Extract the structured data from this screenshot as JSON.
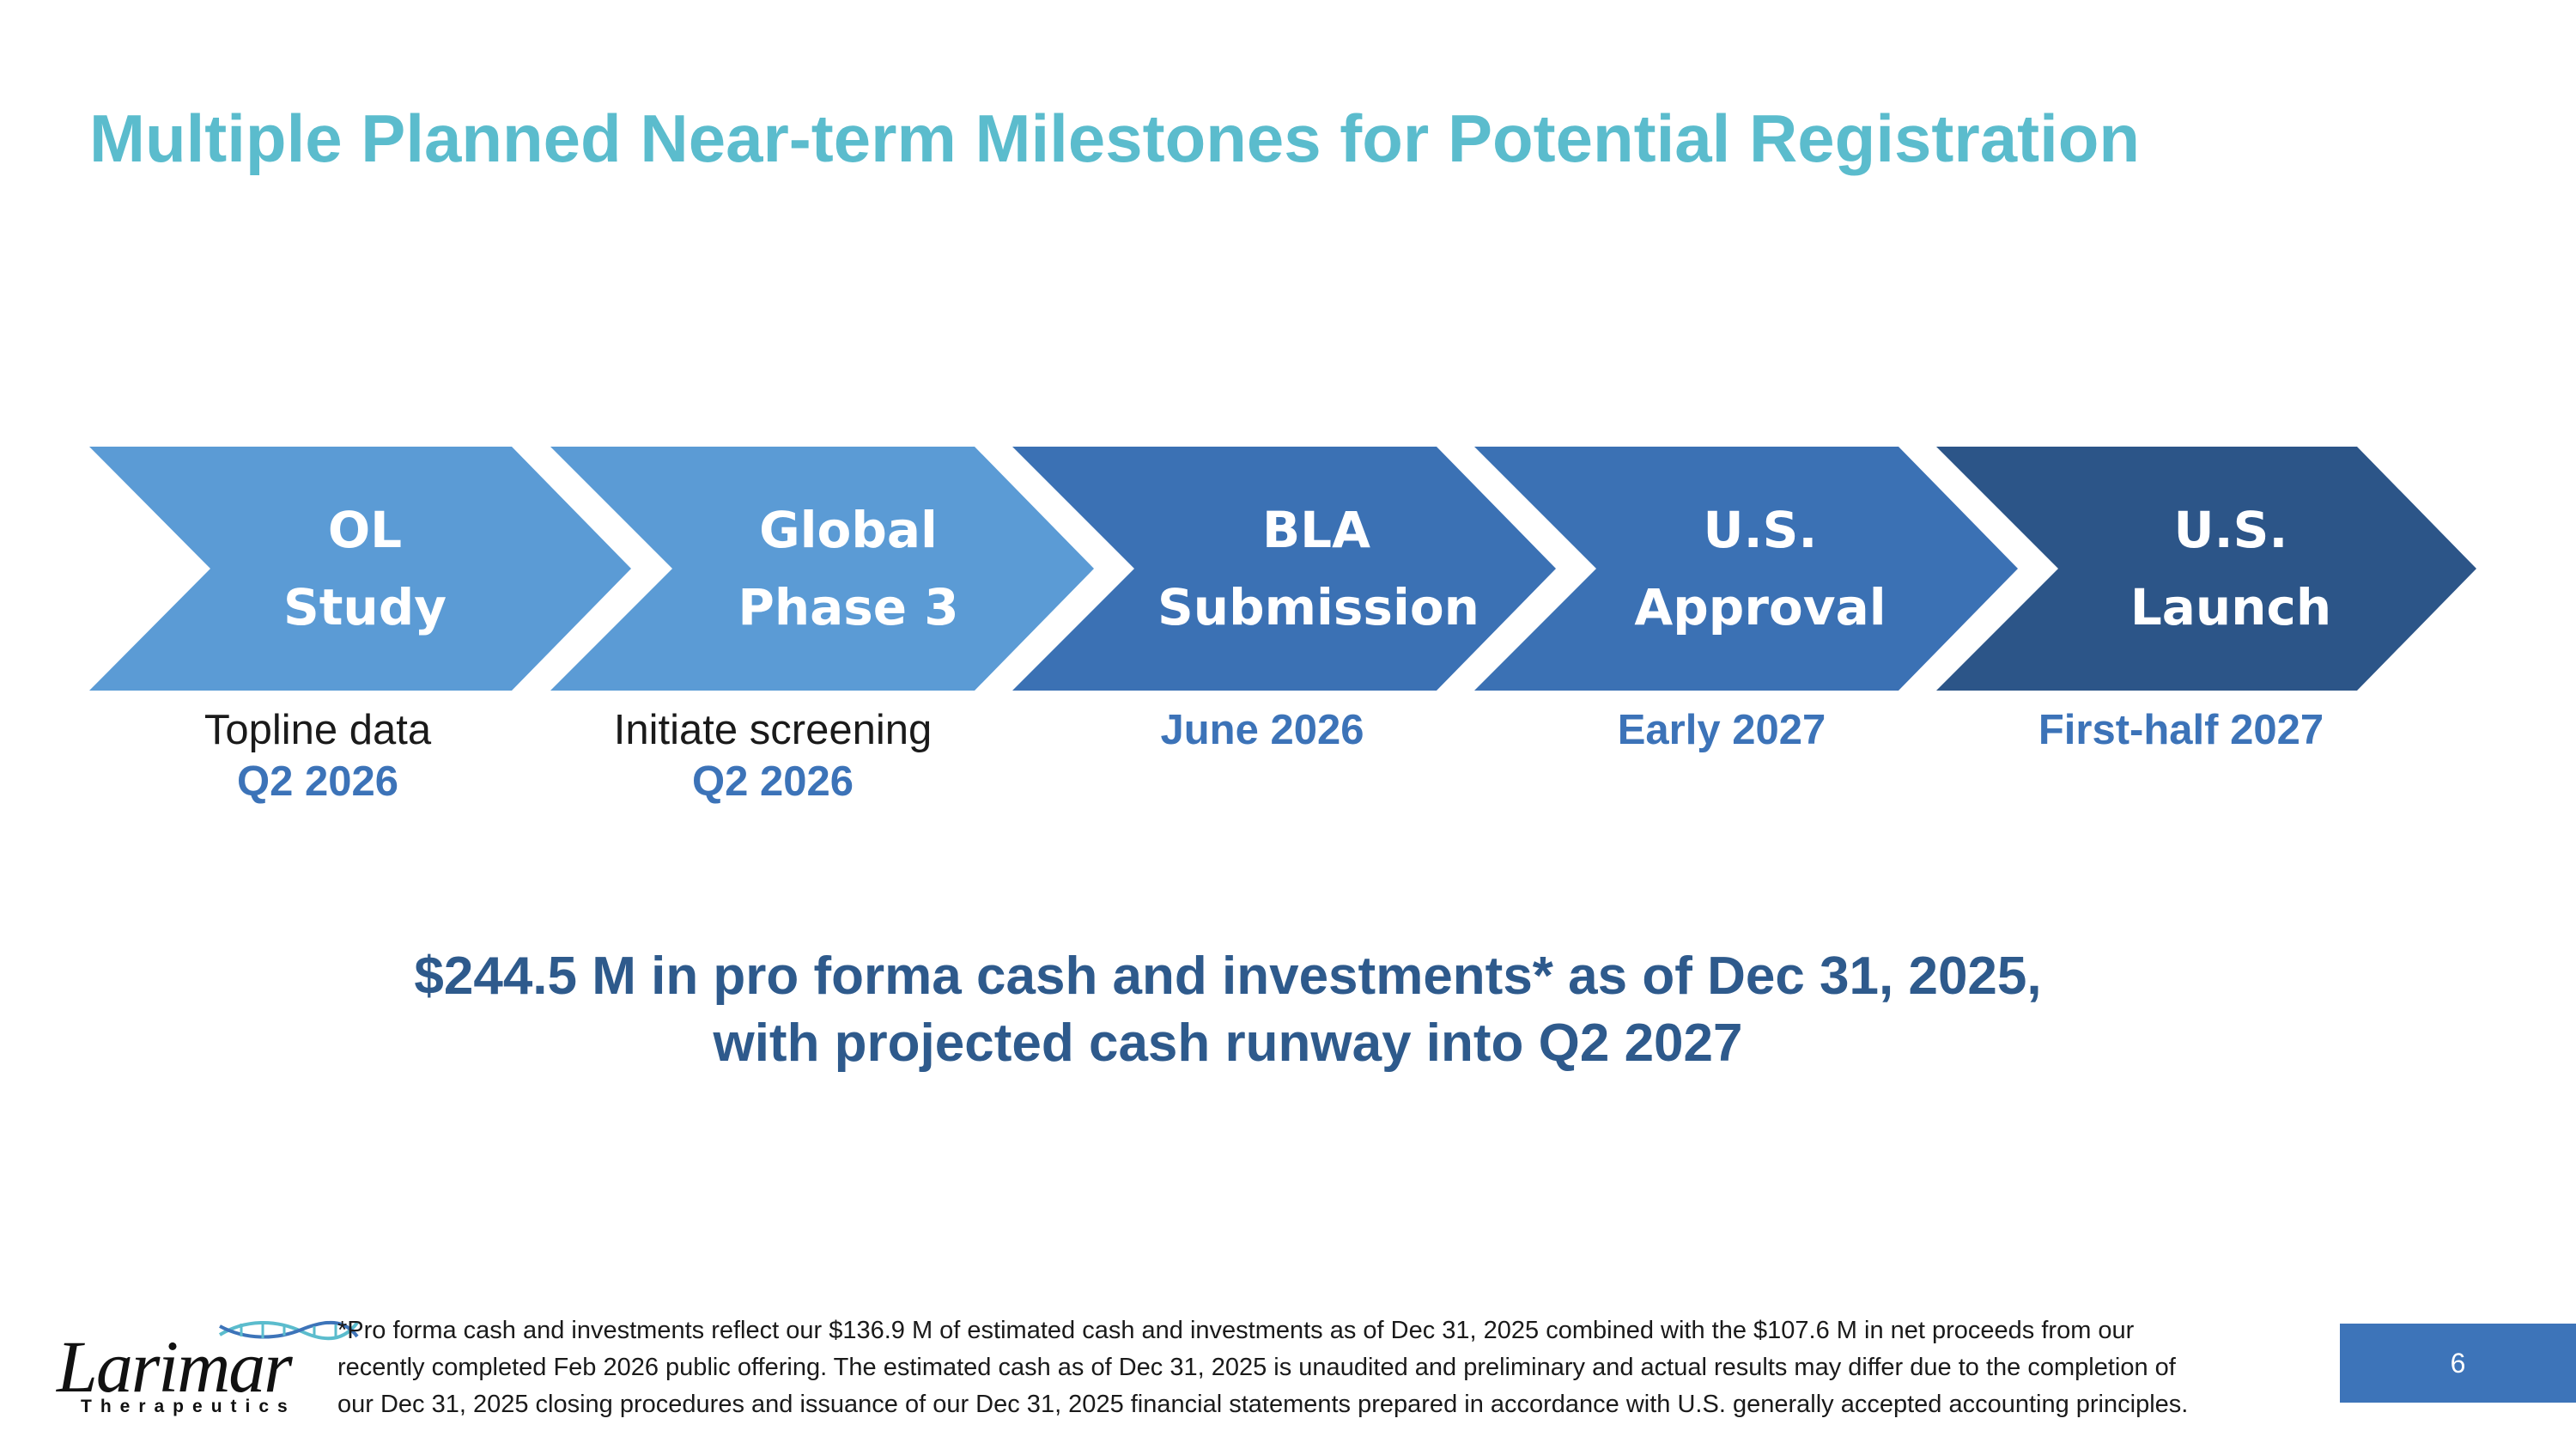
{
  "slide": {
    "title": "Multiple Planned Near-term Milestones for Potential Registration",
    "page_number": "6"
  },
  "steps": [
    {
      "line1": "OL",
      "line2": "Study",
      "color": "#5b9bd5"
    },
    {
      "line1": "Global",
      "line2": "Phase 3",
      "color": "#5b9bd5"
    },
    {
      "line1": "BLA",
      "line2": "Submission",
      "color": "#3b71b4"
    },
    {
      "line1": "U.S.",
      "line2": "Approval",
      "color": "#3b71b4"
    },
    {
      "line1": "U.S.",
      "line2": "Launch",
      "color": "#2c5588"
    }
  ],
  "milestones": [
    {
      "description": "Topline data",
      "date": "Q2 2026"
    },
    {
      "description": "Initiate screening",
      "date": "Q2 2026"
    },
    {
      "description": "",
      "date": "June 2026"
    },
    {
      "description": "",
      "date": "Early 2027"
    },
    {
      "description": "",
      "date": "First-half 2027"
    }
  ],
  "cash_statement": {
    "line1": "$244.5 M in pro forma cash and investments* as of Dec 31, 2025,",
    "line2": "with projected cash runway into Q2 2027"
  },
  "footnote": {
    "line1": "*Pro forma cash and investments reflect our $136.9 M of estimated cash and investments as of Dec 31, 2025 combined with the $107.6 M in net proceeds from our",
    "line2": "recently completed Feb 2026 public offering. The estimated cash as of Dec 31, 2025 is unaudited and preliminary and actual results may differ due to the completion of",
    "line3": "our Dec 31, 2025 closing procedures and issuance of our Dec 31, 2025 financial statements prepared in accordance with U.S. generally accepted accounting principles."
  },
  "logo": {
    "name": "Larimar",
    "subtitle": "Therapeutics"
  },
  "colors": {
    "title": "#5bbccd",
    "date_accent": "#3c73b8",
    "cash_text": "#2e5a8c",
    "page_badge": "#3d74b9"
  }
}
